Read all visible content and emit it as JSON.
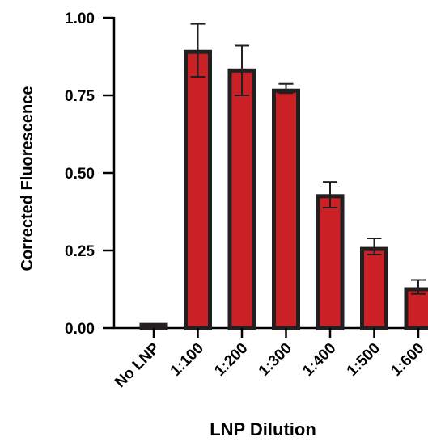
{
  "chart_data": {
    "type": "bar",
    "xlabel": "LNP Dilution",
    "ylabel": "Corrected Fluorescence",
    "categories": [
      "No LNP",
      "1:100",
      "1:200",
      "1:300",
      "1:400",
      "1:500",
      "1:600"
    ],
    "values": [
      0.01,
      0.89,
      0.83,
      0.765,
      0.425,
      0.255,
      0.125
    ],
    "error_upper": [
      0.012,
      0.98,
      0.91,
      0.787,
      0.471,
      0.289,
      0.155
    ],
    "error_lower": [
      0.008,
      0.81,
      0.75,
      0.757,
      0.388,
      0.237,
      0.11
    ],
    "ylim": [
      0,
      1.0
    ],
    "yticks": [
      0,
      0.25,
      0.5,
      0.75,
      1.0
    ],
    "ytick_labels": [
      "0.00",
      "0.25",
      "0.50",
      "0.75",
      "1.00"
    ],
    "grid": false,
    "bar_fill": "#cc2027",
    "bar_edge": "#231f20"
  }
}
